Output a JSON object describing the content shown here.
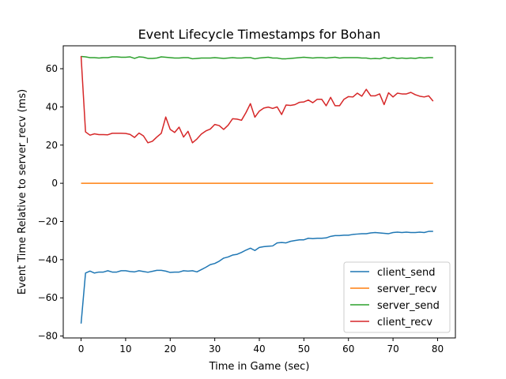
{
  "chart_data": {
    "type": "line",
    "title": "Event Lifecycle Timestamps for Bohan",
    "xlabel": "Time in Game (sec)",
    "ylabel": "Event Time Relative to server_recv (ms)",
    "xlim": [
      -4,
      84
    ],
    "ylim": [
      -81,
      72
    ],
    "xticks": [
      0,
      10,
      20,
      30,
      40,
      50,
      60,
      70,
      80
    ],
    "yticks": [
      -80,
      -60,
      -40,
      -20,
      0,
      20,
      40,
      60
    ],
    "grid": false,
    "legend_position": "lower-right",
    "x": [
      0,
      1,
      2,
      3,
      4,
      5,
      6,
      7,
      8,
      9,
      10,
      11,
      12,
      13,
      14,
      15,
      16,
      17,
      18,
      19,
      20,
      21,
      22,
      23,
      24,
      25,
      26,
      27,
      28,
      29,
      30,
      31,
      32,
      33,
      34,
      35,
      36,
      37,
      38,
      39,
      40,
      41,
      42,
      43,
      44,
      45,
      46,
      47,
      48,
      49,
      50,
      51,
      52,
      53,
      54,
      55,
      56,
      57,
      58,
      59,
      60,
      61,
      62,
      63,
      64,
      65,
      66,
      67,
      68,
      69,
      70,
      71,
      72,
      73,
      74,
      75,
      76,
      77,
      78,
      79
    ],
    "series": [
      {
        "name": "client_send",
        "color": "#1f77b4",
        "values": [
          -73.5,
          -47,
          -46,
          -47,
          -46.5,
          -46.5,
          -45.8,
          -46.5,
          -46.5,
          -45.8,
          -45.8,
          -46.2,
          -46.4,
          -45.8,
          -46.2,
          -46.6,
          -46.1,
          -45.6,
          -45.6,
          -46,
          -46.7,
          -46.5,
          -46.5,
          -45.8,
          -46,
          -45.8,
          -46.4,
          -45.2,
          -44,
          -42.6,
          -42,
          -40.8,
          -39.2,
          -38.6,
          -37.6,
          -37.2,
          -36.2,
          -35,
          -34,
          -35.2,
          -33.6,
          -33.2,
          -33,
          -32.8,
          -31.2,
          -31,
          -31.2,
          -30.4,
          -30,
          -29.6,
          -29.6,
          -28.8,
          -29,
          -28.8,
          -28.8,
          -28.6,
          -27.8,
          -27.4,
          -27.4,
          -27.2,
          -27.2,
          -26.8,
          -26.6,
          -26.4,
          -26.4,
          -26,
          -25.8,
          -26,
          -26.2,
          -26.4,
          -25.8,
          -25.6,
          -25.8,
          -25.6,
          -25.8,
          -25.8,
          -25.6,
          -25.8,
          -25.2,
          -25.2
        ]
      },
      {
        "name": "server_recv",
        "color": "#ff7f0e",
        "values": [
          0,
          0,
          0,
          0,
          0,
          0,
          0,
          0,
          0,
          0,
          0,
          0,
          0,
          0,
          0,
          0,
          0,
          0,
          0,
          0,
          0,
          0,
          0,
          0,
          0,
          0,
          0,
          0,
          0,
          0,
          0,
          0,
          0,
          0,
          0,
          0,
          0,
          0,
          0,
          0,
          0,
          0,
          0,
          0,
          0,
          0,
          0,
          0,
          0,
          0,
          0,
          0,
          0,
          0,
          0,
          0,
          0,
          0,
          0,
          0,
          0,
          0,
          0,
          0,
          0,
          0,
          0,
          0,
          0,
          0,
          0,
          0,
          0,
          0,
          0,
          0,
          0,
          0,
          0,
          0
        ]
      },
      {
        "name": "server_send",
        "color": "#2ca02c",
        "values": [
          66.4,
          66.2,
          65.8,
          65.8,
          65.6,
          65.8,
          65.8,
          66.2,
          66.2,
          66,
          66,
          66.2,
          65.4,
          66.2,
          66,
          65.4,
          65.4,
          65.6,
          66.2,
          66,
          65.8,
          65.6,
          65.6,
          65.8,
          65.8,
          65.2,
          65.4,
          65.6,
          65.6,
          65.6,
          65.8,
          65.6,
          65.4,
          65.6,
          65.8,
          65.6,
          65.6,
          65.8,
          65.8,
          65.2,
          65.6,
          65.8,
          66,
          65.6,
          65.6,
          65.2,
          65.2,
          65.4,
          65.6,
          65.8,
          66,
          65.8,
          65.6,
          65.8,
          65.8,
          65.6,
          65.8,
          66,
          65.6,
          65.8,
          65.8,
          65.8,
          65.8,
          65.6,
          65.6,
          65.2,
          65.4,
          65.2,
          65.8,
          65.4,
          65.8,
          65.4,
          65.6,
          65.4,
          65.6,
          65.4,
          65.8,
          65.6,
          65.8,
          65.8
        ]
      },
      {
        "name": "client_recv",
        "color": "#d62728",
        "values": [
          66.6,
          26.9,
          25.2,
          25.9,
          25.5,
          25.5,
          25.4,
          26.2,
          26.2,
          26.2,
          26.1,
          25.6,
          24,
          26.3,
          24.8,
          21.2,
          22,
          24.2,
          26.2,
          34.7,
          28.2,
          26.6,
          29.4,
          24.2,
          27.2,
          21.2,
          23.2,
          25.8,
          27.4,
          28.4,
          30.8,
          30.2,
          28.2,
          30.4,
          33.8,
          33.6,
          33,
          37,
          41.7,
          34.6,
          37.8,
          39.4,
          39.9,
          39.2,
          40,
          36,
          41,
          40.8,
          41.2,
          42.4,
          42.6,
          43.6,
          42.2,
          44,
          44,
          40.6,
          45,
          40.6,
          40.6,
          44,
          45.4,
          45.2,
          47.2,
          45.6,
          49.2,
          45.8,
          45.8,
          46.8,
          41.2,
          47.4,
          45.2,
          47.2,
          46.8,
          46.8,
          47.6,
          46.4,
          45.6,
          45.2,
          45.8,
          43
        ]
      }
    ]
  }
}
